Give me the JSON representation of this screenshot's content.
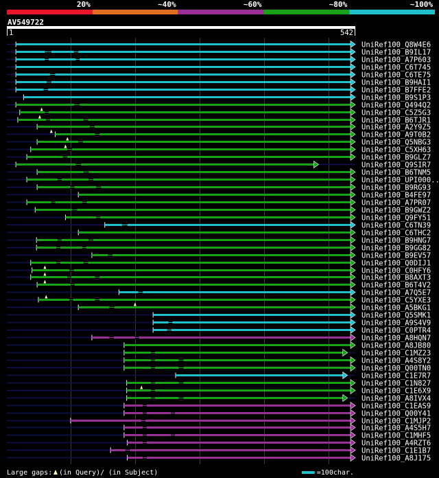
{
  "chart_data": {
    "type": "alignment-overview",
    "title": "AV549722",
    "query_length": 542,
    "ruler": {
      "start_label": "1",
      "end_label": "542"
    },
    "identity_scale": [
      {
        "label": "20%",
        "color": "#e8152d"
      },
      {
        "label": "~40%",
        "color": "#e0701f"
      },
      {
        "label": "~60%",
        "color": "#9a2f98"
      },
      {
        "label": "~80%",
        "color": "#17a117"
      },
      {
        "label": "~100%",
        "color": "#1fc0cc"
      }
    ],
    "colors": {
      "cyan": "#1fc0cc",
      "green": "#17a117",
      "purple": "#9a2f98",
      "query": "#10105a"
    },
    "hits": [
      {
        "name": "UniRef100_Q8W4E6",
        "start": 15,
        "end": 542,
        "color": "cyan",
        "gaps": []
      },
      {
        "name": "UniRef100_B9IL17",
        "start": 15,
        "end": 542,
        "color": "cyan",
        "gaps": [
          [
            60,
            70
          ],
          [
            105,
            112
          ]
        ]
      },
      {
        "name": "UniRef100_A7P603",
        "start": 15,
        "end": 542,
        "color": "cyan",
        "gaps": [
          [
            60,
            66
          ],
          [
            108,
            114
          ]
        ]
      },
      {
        "name": "UniRef100_C6T745",
        "start": 15,
        "end": 542,
        "color": "cyan",
        "gaps": []
      },
      {
        "name": "UniRef100_C6TE75",
        "start": 15,
        "end": 542,
        "color": "cyan",
        "gaps": [
          [
            68,
            76
          ]
        ]
      },
      {
        "name": "UniRef100_B9HAI1",
        "start": 15,
        "end": 542,
        "color": "cyan",
        "gaps": [
          [
            63,
            70
          ]
        ]
      },
      {
        "name": "UniRef100_B7FFE2",
        "start": 15,
        "end": 542,
        "color": "cyan",
        "gaps": [
          [
            58,
            65
          ]
        ]
      },
      {
        "name": "UniRef100_B9S1P3",
        "start": 27,
        "end": 542,
        "color": "cyan",
        "gaps": []
      },
      {
        "name": "UniRef100_Q494Q2",
        "start": 15,
        "end": 542,
        "color": "green",
        "gaps": [
          [
            106,
            114
          ]
        ]
      },
      {
        "name": "UniRef100_C5Z5G3",
        "start": 21,
        "end": 542,
        "color": "green",
        "gaps": [
          [
            60,
            66
          ]
        ],
        "query_gaps": [
          55
        ]
      },
      {
        "name": "UniRef100_B6TJR1",
        "start": 18,
        "end": 542,
        "color": "green",
        "gaps": [
          [
            62,
            68
          ],
          [
            120,
            127
          ]
        ],
        "query_gaps": [
          52
        ]
      },
      {
        "name": "UniRef100_A2Y9Z5",
        "start": 48,
        "end": 542,
        "color": "green",
        "gaps": [
          [
            130,
            137
          ]
        ],
        "query_gaps": []
      },
      {
        "name": "UniRef100_A9T0B2",
        "start": 76,
        "end": 542,
        "color": "green",
        "gaps": [
          [
            138,
            145
          ]
        ],
        "query_gaps": [
          70
        ]
      },
      {
        "name": "UniRef100_Q5NBG3",
        "start": 48,
        "end": 542,
        "color": "green",
        "gaps": [
          [
            112,
            119
          ]
        ],
        "query_gaps": [
          95
        ]
      },
      {
        "name": "UniRef100_C5XH63",
        "start": 38,
        "end": 542,
        "color": "green",
        "gaps": [
          [
            95,
            102
          ]
        ],
        "query_gaps": [
          92
        ]
      },
      {
        "name": "UniRef100_B9GLZ7",
        "start": 32,
        "end": 542,
        "color": "green",
        "gaps": [
          [
            88,
            95
          ]
        ],
        "query_gaps": []
      },
      {
        "name": "UniRef100_Q9SIR7",
        "start": 15,
        "end": 485,
        "color": "green",
        "gaps": [
          [
            108,
            116
          ]
        ]
      },
      {
        "name": "UniRef100_B6TNM5",
        "start": 48,
        "end": 542,
        "color": "green",
        "gaps": [
          [
            120,
            128
          ]
        ]
      },
      {
        "name": "UniRef100_UPI000..",
        "start": 32,
        "end": 542,
        "color": "green",
        "gaps": [
          [
            80,
            86
          ],
          [
            128,
            135
          ]
        ]
      },
      {
        "name": "UniRef100_B9RG93",
        "start": 48,
        "end": 542,
        "color": "green",
        "gaps": [
          [
            100,
            106
          ],
          [
            140,
            147
          ]
        ]
      },
      {
        "name": "UniRef100_B4FE97",
        "start": 112,
        "end": 542,
        "color": "green",
        "gaps": []
      },
      {
        "name": "UniRef100_A7PR07",
        "start": 32,
        "end": 542,
        "color": "green",
        "gaps": [
          [
            70,
            76
          ],
          [
            118,
            125
          ]
        ]
      },
      {
        "name": "UniRef100_B9GWZ2",
        "start": 45,
        "end": 542,
        "color": "green",
        "gaps": [
          [
            102,
            110
          ]
        ]
      },
      {
        "name": "UniRef100_Q9FY51",
        "start": 92,
        "end": 542,
        "color": "green",
        "gaps": [
          [
            140,
            146
          ]
        ]
      },
      {
        "name": "UniRef100_C6TN39",
        "start": 153,
        "end": 542,
        "color": "cyan",
        "gaps": [
          [
            180,
            188
          ]
        ]
      },
      {
        "name": "UniRef100_C6THC2",
        "start": 112,
        "end": 542,
        "color": "green",
        "gaps": []
      },
      {
        "name": "UniRef100_B9HNG7",
        "start": 47,
        "end": 542,
        "color": "green",
        "gaps": [
          [
            80,
            86
          ],
          [
            128,
            135
          ]
        ]
      },
      {
        "name": "UniRef100_B9GG82",
        "start": 47,
        "end": 542,
        "color": "green",
        "gaps": [
          [
            78,
            84
          ],
          [
            118,
            124
          ]
        ]
      },
      {
        "name": "UniRef100_B9EV57",
        "start": 133,
        "end": 542,
        "color": "green",
        "gaps": [
          [
            158,
            165
          ]
        ]
      },
      {
        "name": "UniRef100_Q0DIJ1",
        "start": 38,
        "end": 542,
        "color": "green",
        "gaps": [
          [
            78,
            84
          ],
          [
            120,
            127
          ]
        ]
      },
      {
        "name": "UniRef100_C0HFY6",
        "start": 40,
        "end": 542,
        "color": "green",
        "gaps": [
          [
            98,
            105
          ]
        ],
        "query_gaps": [
          60
        ]
      },
      {
        "name": "UniRef100_B8AXT3",
        "start": 38,
        "end": 542,
        "color": "green",
        "gaps": [
          [
            95,
            101
          ],
          [
            138,
            145
          ]
        ],
        "query_gaps": [
          60
        ]
      },
      {
        "name": "UniRef100_B6T4V2",
        "start": 48,
        "end": 542,
        "color": "green",
        "gaps": [
          [
            100,
            106
          ]
        ],
        "query_gaps": [
          60
        ]
      },
      {
        "name": "UniRef100_A7Q5E7",
        "start": 175,
        "end": 542,
        "color": "cyan",
        "gaps": [
          [
            205,
            212
          ]
        ]
      },
      {
        "name": "UniRef100_C5YXE3",
        "start": 50,
        "end": 542,
        "color": "green",
        "gaps": [
          [
            98,
            104
          ],
          [
            138,
            145
          ]
        ],
        "query_gaps": [
          62
        ]
      },
      {
        "name": "UniRef100_A5BKG1",
        "start": 112,
        "end": 542,
        "color": "green",
        "gaps": [
          [
            160,
            168
          ]
        ],
        "query_gaps": [
          200
        ]
      },
      {
        "name": "UniRef100_Q5SMK1",
        "start": 228,
        "end": 542,
        "color": "cyan",
        "gaps": []
      },
      {
        "name": "UniRef100_A9S4V9",
        "start": 228,
        "end": 542,
        "color": "cyan",
        "gaps": [
          [
            252,
            258
          ]
        ]
      },
      {
        "name": "UniRef100_C0PTR4",
        "start": 228,
        "end": 542,
        "color": "cyan",
        "gaps": [
          [
            250,
            256
          ]
        ]
      },
      {
        "name": "UniRef100_A8HQN7",
        "start": 133,
        "end": 542,
        "color": "purple",
        "gaps": [
          [
            160,
            167
          ],
          [
            200,
            206
          ]
        ]
      },
      {
        "name": "UniRef100_A8JB80",
        "start": 183,
        "end": 542,
        "color": "green",
        "gaps": []
      },
      {
        "name": "UniRef100_C1MZ23",
        "start": 183,
        "end": 530,
        "color": "green",
        "gaps": [
          [
            225,
            231
          ]
        ]
      },
      {
        "name": "UniRef100_A4S8Y2",
        "start": 183,
        "end": 542,
        "color": "green",
        "gaps": [
          [
            225,
            231
          ],
          [
            268,
            275
          ]
        ]
      },
      {
        "name": "UniRef100_Q00TN0",
        "start": 183,
        "end": 542,
        "color": "green",
        "gaps": [
          [
            225,
            231
          ],
          [
            268,
            275
          ]
        ]
      },
      {
        "name": "UniRef100_C1E7R7",
        "start": 263,
        "end": 530,
        "color": "cyan",
        "gaps": []
      },
      {
        "name": "UniRef100_C1N827",
        "start": 187,
        "end": 542,
        "color": "green",
        "gaps": [
          [
            225,
            231
          ],
          [
            268,
            275
          ]
        ]
      },
      {
        "name": "UniRef100_C1E6X9",
        "start": 187,
        "end": 542,
        "color": "green",
        "gaps": [
          [
            225,
            231
          ]
        ],
        "query_gaps": [
          210
        ]
      },
      {
        "name": "UniRef100_A8IVX4",
        "start": 187,
        "end": 530,
        "color": "green",
        "gaps": [
          [
            225,
            231
          ],
          [
            268,
            275
          ]
        ]
      },
      {
        "name": "UniRef100_C1EAS9",
        "start": 183,
        "end": 542,
        "color": "purple",
        "gaps": [
          [
            212,
            218
          ]
        ]
      },
      {
        "name": "UniRef100_Q00Y41",
        "start": 183,
        "end": 542,
        "color": "purple",
        "gaps": [
          [
            212,
            218
          ],
          [
            256,
            262
          ]
        ]
      },
      {
        "name": "UniRef100_C1MJP2",
        "start": 100,
        "end": 542,
        "color": "purple",
        "gaps": [
          [
            210,
            216
          ]
        ]
      },
      {
        "name": "UniRef100_A4S5H7",
        "start": 183,
        "end": 542,
        "color": "purple",
        "gaps": [
          [
            212,
            218
          ]
        ]
      },
      {
        "name": "UniRef100_C1MHF5",
        "start": 183,
        "end": 542,
        "color": "purple",
        "gaps": [
          [
            212,
            218
          ],
          [
            256,
            262
          ]
        ]
      },
      {
        "name": "UniRef100_A4RZT6",
        "start": 188,
        "end": 542,
        "color": "purple",
        "gaps": [
          [
            212,
            218
          ]
        ]
      },
      {
        "name": "UniRef100_C1E1B7",
        "start": 162,
        "end": 542,
        "color": "purple",
        "gaps": [
          [
            185,
            192
          ]
        ]
      },
      {
        "name": "UniRef100_A8J175",
        "start": 188,
        "end": 542,
        "color": "purple",
        "gaps": [
          [
            212,
            218
          ]
        ]
      }
    ],
    "legend": {
      "gaps_prefix": "Large gaps:",
      "gaps_query": "(in Query)/",
      "gaps_subject": "(in Subject)",
      "scale_label": "=100char."
    }
  }
}
